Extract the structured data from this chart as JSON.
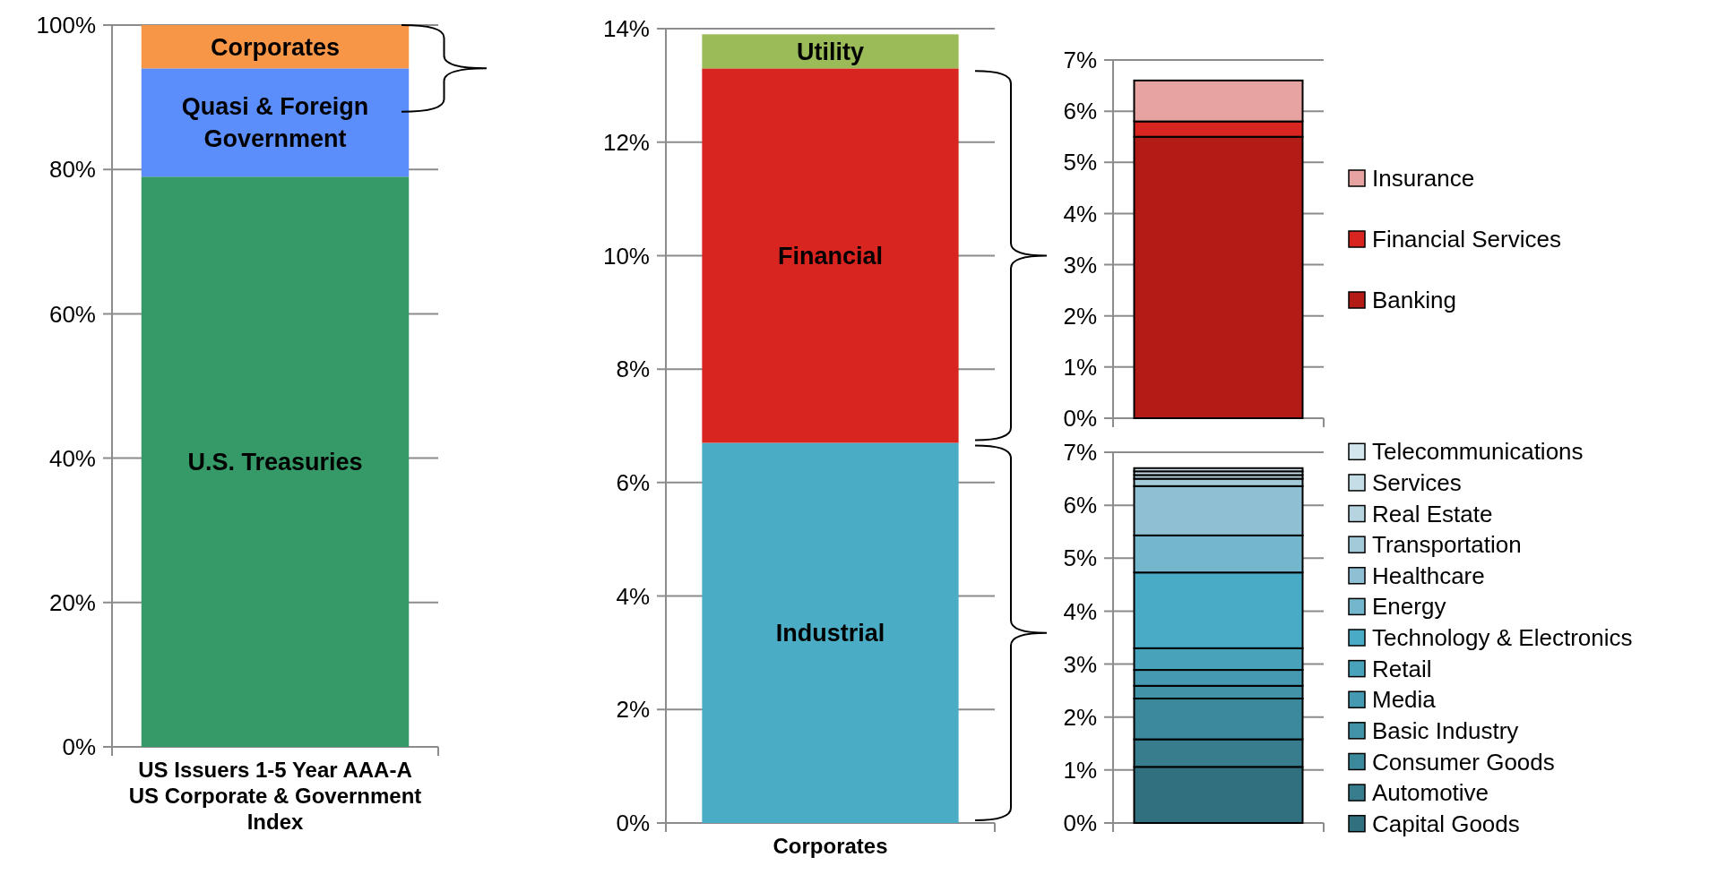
{
  "chart_data": [
    {
      "type": "bar",
      "stacked": true,
      "categories": [
        "US Issuers 1-5 Year AAA-A US Corporate & Government Index"
      ],
      "series": [
        {
          "name": "U.S. Treasuries",
          "color": "#359a67",
          "values": [
            79
          ]
        },
        {
          "name": "Quasi & Foreign Government",
          "color": "#5b8dfb",
          "values": [
            15
          ]
        },
        {
          "name": "Corporates",
          "color": "#f79646",
          "values": [
            6
          ]
        }
      ],
      "ylim": [
        0,
        100
      ],
      "yticks": [
        {
          "value": 0,
          "label": "0%"
        },
        {
          "value": 20,
          "label": "20%"
        },
        {
          "value": 40,
          "label": "40%"
        },
        {
          "value": 60,
          "label": "60%"
        },
        {
          "value": 80,
          "label": "80%"
        },
        {
          "value": 100,
          "label": "100%"
        }
      ],
      "grid": "y"
    },
    {
      "type": "bar",
      "stacked": true,
      "categories": [
        "Corporates"
      ],
      "series": [
        {
          "name": "Industrial",
          "color": "#4bacc6",
          "values": [
            6.7
          ]
        },
        {
          "name": "Financial",
          "color": "#d9251f",
          "values": [
            6.6
          ]
        },
        {
          "name": "Utility",
          "color": "#9bbb59",
          "values": [
            0.6
          ]
        }
      ],
      "ylim": [
        0,
        14
      ],
      "yticks": [
        {
          "value": 0,
          "label": "0%"
        },
        {
          "value": 2,
          "label": "2%"
        },
        {
          "value": 4,
          "label": "4%"
        },
        {
          "value": 6,
          "label": "6%"
        },
        {
          "value": 8,
          "label": "8%"
        },
        {
          "value": 10,
          "label": "10%"
        },
        {
          "value": 12,
          "label": "12%"
        },
        {
          "value": 14,
          "label": "14%"
        }
      ],
      "grid": "y"
    },
    {
      "type": "bar",
      "stacked": true,
      "categories": [
        null
      ],
      "series": [
        {
          "name": "Banking",
          "color": "#b31b17",
          "values": [
            5.5
          ]
        },
        {
          "name": "Financial Services",
          "color": "#d9251f",
          "values": [
            0.3
          ]
        },
        {
          "name": "Insurance",
          "color": "#e6a3a2",
          "values": [
            0.8
          ]
        }
      ],
      "ylim": [
        0,
        7
      ],
      "yticks": [
        {
          "value": 0,
          "label": "0%"
        },
        {
          "value": 1,
          "label": "1%"
        },
        {
          "value": 2,
          "label": "2%"
        },
        {
          "value": 3,
          "label": "3%"
        },
        {
          "value": 4,
          "label": "4%"
        },
        {
          "value": 5,
          "label": "5%"
        },
        {
          "value": 6,
          "label": "6%"
        },
        {
          "value": 7,
          "label": "7%"
        }
      ],
      "grid": "y",
      "legend": "right"
    },
    {
      "type": "bar",
      "stacked": true,
      "categories": [
        null
      ],
      "series": [
        {
          "name": "Capital Goods",
          "color": "#31707f",
          "values": [
            1.06
          ]
        },
        {
          "name": "Automotive",
          "color": "#377d8e",
          "values": [
            0.52
          ]
        },
        {
          "name": "Consumer Goods",
          "color": "#3d899c",
          "values": [
            0.77
          ]
        },
        {
          "name": "Basic Industry",
          "color": "#4292a8",
          "values": [
            0.24
          ]
        },
        {
          "name": "Media",
          "color": "#4599b0",
          "values": [
            0.3
          ]
        },
        {
          "name": "Retail",
          "color": "#48a2ba",
          "values": [
            0.41
          ]
        },
        {
          "name": "Technology & Electronics",
          "color": "#4aabc6",
          "values": [
            1.43
          ]
        },
        {
          "name": "Energy",
          "color": "#74b6cc",
          "values": [
            0.7
          ]
        },
        {
          "name": "Healthcare",
          "color": "#8ebfd2",
          "values": [
            0.93
          ]
        },
        {
          "name": "Transportation",
          "color": "#a3cad9",
          "values": [
            0.14
          ]
        },
        {
          "name": "Real Estate",
          "color": "#b5d4e0",
          "values": [
            0.07
          ]
        },
        {
          "name": "Services",
          "color": "#c5dde6",
          "values": [
            0.07
          ]
        },
        {
          "name": "Telecommunications",
          "color": "#d3e6ed",
          "values": [
            0.06
          ]
        }
      ],
      "ylim": [
        0,
        7
      ],
      "yticks": [
        {
          "value": 0,
          "label": "0%"
        },
        {
          "value": 1,
          "label": "1%"
        },
        {
          "value": 2,
          "label": "2%"
        },
        {
          "value": 3,
          "label": "3%"
        },
        {
          "value": 4,
          "label": "4%"
        },
        {
          "value": 5,
          "label": "5%"
        },
        {
          "value": 6,
          "label": "6%"
        },
        {
          "value": 7,
          "label": "7%"
        }
      ],
      "grid": "y",
      "legend": "right"
    }
  ]
}
